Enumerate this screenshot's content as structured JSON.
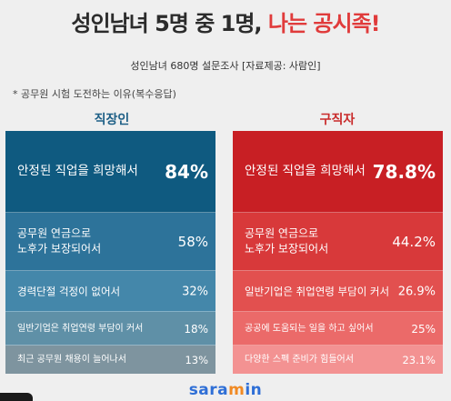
{
  "header": {
    "title_main": "성인남녀 5명 중 1명,",
    "title_accent": "나는 공시족!",
    "subtitle": "성인남녀 680명 설문조사  [자료제공: 사람인]",
    "note": "* 공무원 시험 도전하는 이유(복수응답)"
  },
  "brand": {
    "logo_pre": "sara",
    "logo_dot": "m",
    "logo_post": "in"
  },
  "colors": {
    "accent_red": "#e03b3b",
    "worker_title": "#1d5f86",
    "seeker_title": "#c92a2a",
    "logo": "#2f6fd6"
  },
  "chart_data": [
    {
      "type": "table",
      "title": "직장인",
      "categories": [
        "안정된 직업을 희망해서",
        "공무원 연금으로\n노후가 보장되어서",
        "경력단절 걱정이 없어서",
        "일반기업은 취업연령 부담이 커서",
        "최근 공무원 채용이 늘어나서"
      ],
      "values": [
        84,
        58,
        32,
        18,
        13
      ],
      "labels": [
        "84%",
        "58%",
        "32%",
        "18%",
        "13%"
      ],
      "colors": [
        "#0f5a80",
        "#2d739a",
        "#4487aa",
        "#5f90a7",
        "#7e949f"
      ]
    },
    {
      "type": "table",
      "title": "구직자",
      "categories": [
        "안정된 직업을 희망해서",
        "공무원 연금으로\n노후가 보장되어서",
        "일반기업은 취업연령 부담이 커서",
        "공공에 도움되는 일을 하고 싶어서",
        "다양한 스펙 준비가 힘들어서"
      ],
      "values": [
        78.8,
        44.2,
        26.9,
        25,
        23.1
      ],
      "labels": [
        "78.8%",
        "44.2%",
        "26.9%",
        "25%",
        "23.1%"
      ],
      "colors": [
        "#c81f24",
        "#d8393a",
        "#e2504f",
        "#eb6a69",
        "#f39292"
      ]
    }
  ]
}
